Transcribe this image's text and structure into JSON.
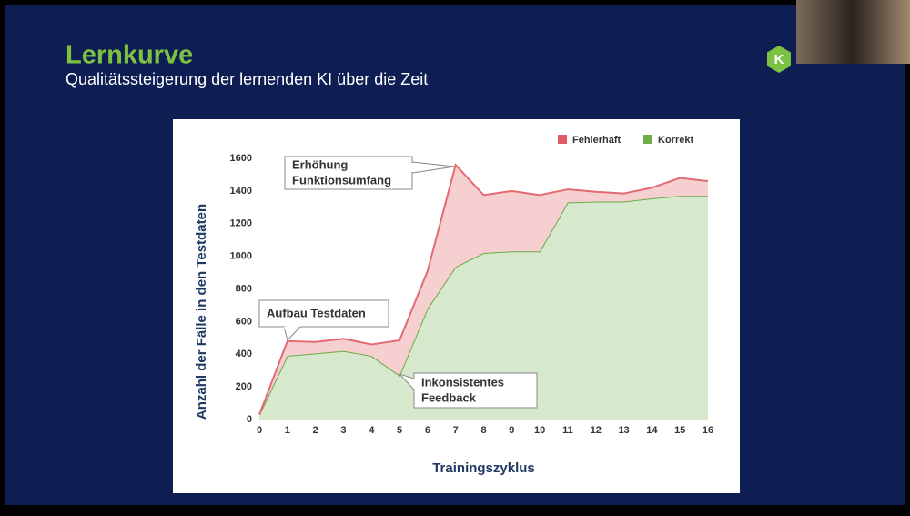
{
  "slide": {
    "title": "Lernkurve",
    "subtitle": "Qualitätssteigerung der lernenden KI über die Zeit",
    "logo": "K"
  },
  "chart_data": {
    "type": "stacked-area",
    "x": [
      0,
      1,
      2,
      3,
      4,
      5,
      6,
      7,
      8,
      9,
      10,
      11,
      12,
      13,
      14,
      15,
      16
    ],
    "series": [
      {
        "name": "Fehlerhaft",
        "color": "#e05a68",
        "values": [
          0,
          90,
          70,
          75,
          70,
          215,
          230,
          625,
          355,
          370,
          345,
          80,
          60,
          50,
          65,
          110,
          90
        ]
      },
      {
        "name": "Korrekt",
        "color": "#70ad47",
        "values": [
          30,
          390,
          405,
          420,
          390,
          270,
          680,
          935,
          1020,
          1030,
          1030,
          1330,
          1335,
          1335,
          1355,
          1370,
          1370
        ]
      }
    ],
    "xlim": [
      0,
      16
    ],
    "xticks": [
      0,
      1,
      2,
      3,
      4,
      5,
      6,
      7,
      8,
      9,
      10,
      11,
      12,
      13,
      14,
      15,
      16
    ],
    "ylim": [
      0,
      1600
    ],
    "yticks": [
      0,
      200,
      400,
      600,
      800,
      1000,
      1200,
      1400,
      1600
    ],
    "x_label": "Trainingszyklus",
    "y_label": "Anzahl der Fälle in den Testdaten",
    "legend": "top-right",
    "annotations": [
      {
        "lines": [
          "Erhöhung",
          "Funktionsumfang"
        ]
      },
      {
        "lines": [
          "Aufbau Testdaten"
        ]
      },
      {
        "lines": [
          "Inkonsistentes",
          "Feedback"
        ]
      }
    ]
  }
}
